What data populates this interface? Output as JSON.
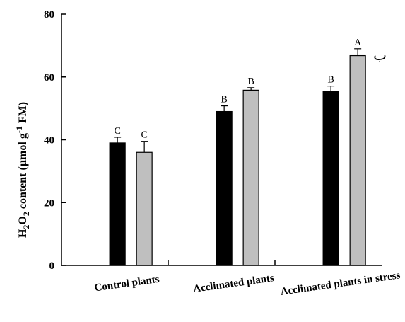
{
  "chart_data": {
    "type": "bar",
    "ylabel": {
      "p1": "H",
      "s1": "2",
      "p2": "O",
      "s2": "2",
      "p3": " content (µmol g",
      "sup": "-1",
      "p4": " FM)"
    },
    "ylim": [
      0,
      80
    ],
    "yticks": [
      0,
      20,
      40,
      60,
      80
    ],
    "grid": false,
    "legend": "none",
    "panel_label": "ب",
    "categories": [
      "Control plants",
      "Acclimated plants",
      "Acclimated plants in stress"
    ],
    "series": [
      {
        "color": "#000000",
        "values": [
          39,
          49,
          55.5
        ],
        "errors": [
          1.8,
          1.8,
          1.6
        ],
        "letters": [
          "C",
          "B",
          "B"
        ]
      },
      {
        "color": "#bfbfbf",
        "values": [
          36,
          55.8,
          66.8
        ],
        "errors": [
          3.5,
          0.8,
          2.2
        ],
        "letters": [
          "C",
          "B",
          "A"
        ]
      }
    ]
  }
}
